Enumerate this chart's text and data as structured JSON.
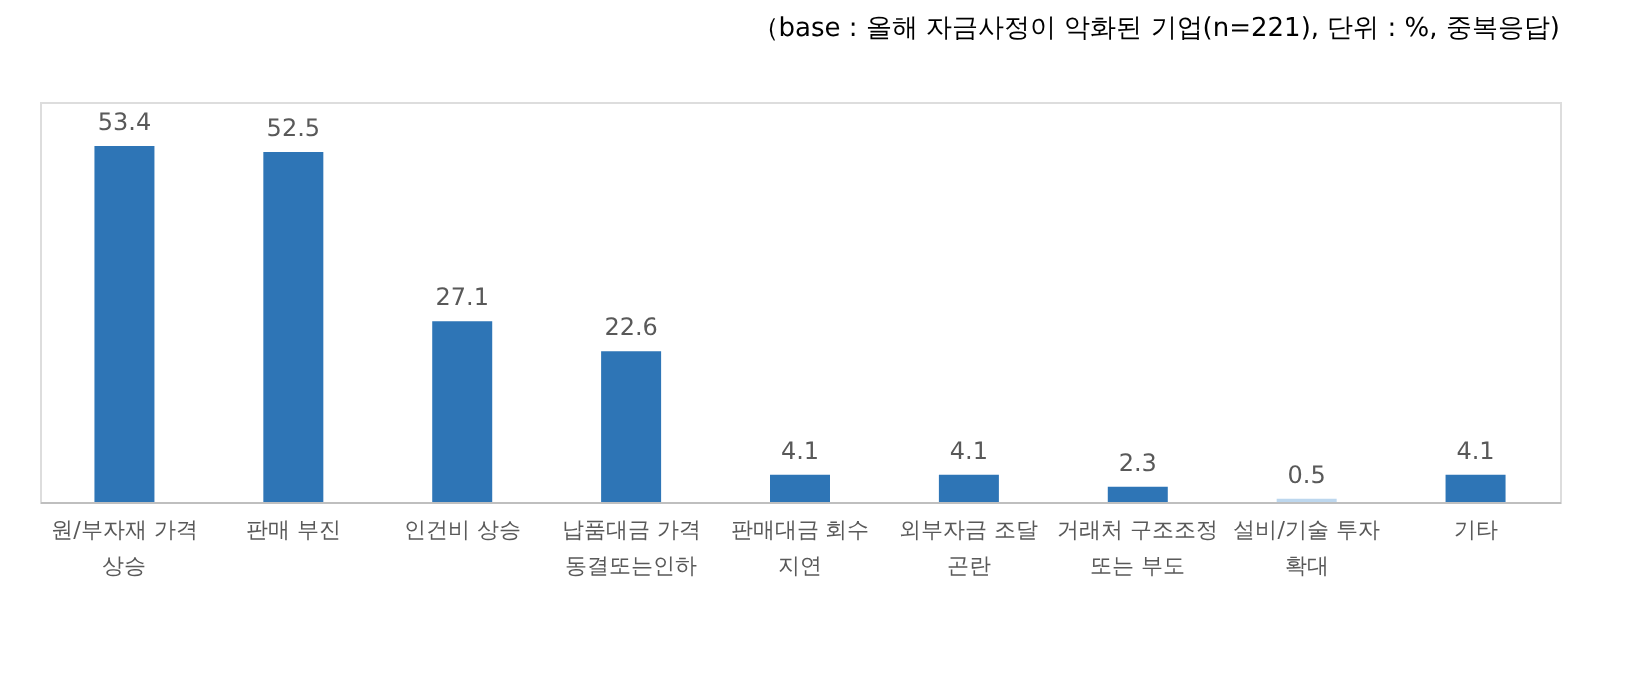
{
  "chart_data": {
    "type": "bar",
    "categories": [
      "원/부자재 가격\n상승",
      "판매 부진",
      "인건비 상승",
      "납품대금 가격\n동결또는인하",
      "판매대금 회수\n지연",
      "외부자금 조달\n곤란",
      "거래처 구조조정\n또는 부도",
      "설비/기술 투자\n확대",
      "기타"
    ],
    "values": [
      53.4,
      52.5,
      27.1,
      22.6,
      4.1,
      4.1,
      2.3,
      0.5,
      4.1
    ],
    "colors": [
      "#2e75b6",
      "#2e75b6",
      "#2e75b6",
      "#2e75b6",
      "#2e75b6",
      "#2e75b6",
      "#2e75b6",
      "#bdd7ee",
      "#2e75b6"
    ],
    "ylim": [
      0,
      60
    ],
    "data_labels": true,
    "tick_labels": "x",
    "grid": false,
    "annotations": [
      "（base : 올해 자금사정이 악화된 기업(n=221), 단위 : %, 중복응답)"
    ]
  }
}
